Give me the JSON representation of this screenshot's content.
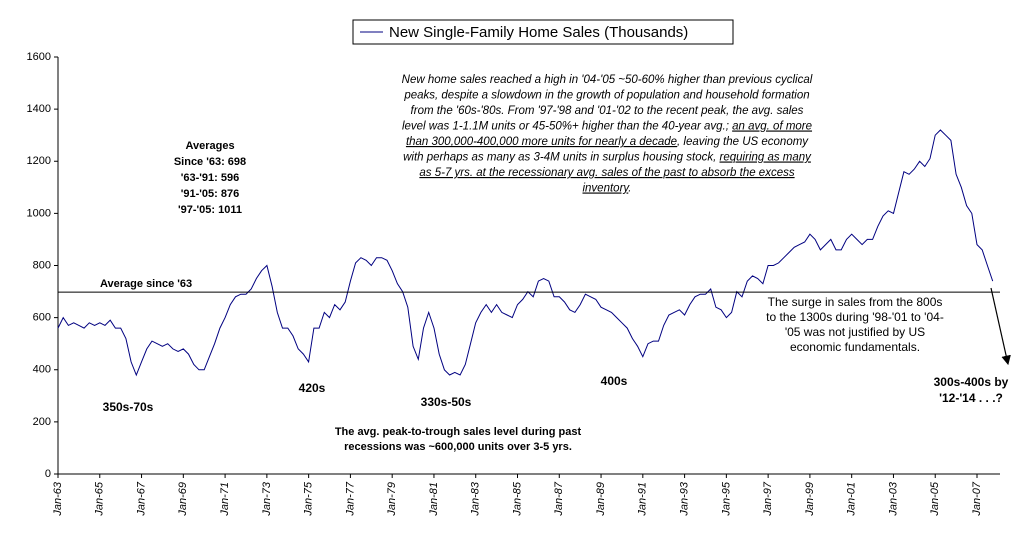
{
  "chart_data": {
    "type": "line",
    "legend": "top-center",
    "categories": [
      "Jan-63",
      null,
      null,
      null,
      null,
      null,
      null,
      null,
      "Jan-65",
      null,
      null,
      null,
      null,
      null,
      null,
      null,
      "Jan-67",
      null,
      null,
      null,
      null,
      null,
      null,
      null,
      "Jan-69",
      null,
      null,
      null,
      null,
      null,
      null,
      null,
      "Jan-71",
      null,
      null,
      null,
      null,
      null,
      null,
      null,
      "Jan-73",
      null,
      null,
      null,
      null,
      null,
      null,
      null,
      "Jan-75",
      null,
      null,
      null,
      null,
      null,
      null,
      null,
      "Jan-77",
      null,
      null,
      null,
      null,
      null,
      null,
      null,
      "Jan-79",
      null,
      null,
      null,
      null,
      null,
      null,
      null,
      "Jan-81",
      null,
      null,
      null,
      null,
      null,
      null,
      null,
      "Jan-83",
      null,
      null,
      null,
      null,
      null,
      null,
      null,
      "Jan-85",
      null,
      null,
      null,
      null,
      null,
      null,
      null,
      "Jan-87",
      null,
      null,
      null,
      null,
      null,
      null,
      null,
      "Jan-89",
      null,
      null,
      null,
      null,
      null,
      null,
      null,
      "Jan-91",
      null,
      null,
      null,
      null,
      null,
      null,
      null,
      "Jan-93",
      null,
      null,
      null,
      null,
      null,
      null,
      null,
      "Jan-95",
      null,
      null,
      null,
      null,
      null,
      null,
      null,
      "Jan-97",
      null,
      null,
      null,
      null,
      null,
      null,
      null,
      "Jan-99",
      null,
      null,
      null,
      null,
      null,
      null,
      null,
      "Jan-01",
      null,
      null,
      null,
      null,
      null,
      null,
      null,
      "Jan-03",
      null,
      null,
      null,
      null,
      null,
      null,
      null,
      "Jan-05",
      null,
      null,
      null,
      null,
      null,
      null,
      null,
      "Jan-07",
      null,
      null,
      null
    ],
    "series": [
      {
        "name": "New Single-Family Home Sales (Thousands)",
        "color": "#000080",
        "values": [
          560,
          600,
          570,
          580,
          570,
          560,
          580,
          570,
          580,
          570,
          590,
          560,
          560,
          520,
          430,
          380,
          430,
          480,
          510,
          500,
          490,
          500,
          480,
          470,
          480,
          460,
          420,
          400,
          400,
          450,
          500,
          560,
          600,
          650,
          680,
          690,
          690,
          710,
          750,
          780,
          800,
          720,
          620,
          560,
          560,
          530,
          480,
          460,
          430,
          560,
          560,
          620,
          600,
          650,
          630,
          660,
          740,
          810,
          830,
          820,
          800,
          830,
          830,
          820,
          780,
          730,
          700,
          640,
          490,
          440,
          560,
          620,
          560,
          460,
          400,
          380,
          390,
          380,
          420,
          500,
          580,
          620,
          650,
          620,
          650,
          620,
          610,
          600,
          650,
          670,
          700,
          680,
          740,
          750,
          740,
          680,
          680,
          660,
          630,
          620,
          650,
          690,
          680,
          670,
          640,
          630,
          620,
          600,
          580,
          560,
          520,
          490,
          450,
          500,
          510,
          510,
          570,
          610,
          620,
          630,
          610,
          650,
          680,
          690,
          690,
          710,
          640,
          630,
          600,
          620,
          700,
          680,
          740,
          760,
          750,
          730,
          800,
          800,
          810,
          830,
          850,
          870,
          880,
          890,
          920,
          900,
          860,
          880,
          900,
          860,
          860,
          900,
          920,
          900,
          880,
          900,
          900,
          950,
          990,
          1010,
          1000,
          1080,
          1160,
          1150,
          1170,
          1200,
          1180,
          1210,
          1300,
          1320,
          1300,
          1280,
          1150,
          1100,
          1030,
          1000,
          880,
          860,
          800,
          740
        ]
      }
    ],
    "ylim": [
      0,
      1600
    ],
    "yticks": [
      0,
      200,
      400,
      600,
      800,
      1000,
      1200,
      1400,
      1600
    ],
    "grid": false,
    "reference_line": {
      "label": "Average since '63",
      "value": 698
    },
    "averages": [
      "Averages",
      "Since '63: 698",
      "'63-'91: 596",
      "'91-'05: 876",
      "'97-'05: 1011"
    ],
    "trough_labels": [
      "350s-70s",
      "420s",
      "330s-50s",
      "400s"
    ],
    "forecast": [
      "300s-400s by",
      "'12-'14 . . .?"
    ],
    "recession_note": [
      "The avg. peak-to-trough sales level during past",
      "recessions was ~600,000 units over 3-5 yrs."
    ],
    "surge_note": [
      "The surge in sales from the 800s",
      "to the 1300s during '98-'01 to '04-",
      "'05 was not justified by US",
      "economic fundamentals."
    ],
    "main_note": [
      [
        {
          "text": "New home sales reached a high in '04-'05 ~50-60% higher than previous cyclical",
          "underline": false
        }
      ],
      [
        {
          "text": "peaks, despite a slowdown in the growth of population and household formation",
          "underline": false
        }
      ],
      [
        {
          "text": "from the '60s-'80s. From '97-'98 and '01-'02 to the recent peak, the avg. sales",
          "underline": false
        }
      ],
      [
        {
          "text": "level was 1-1.1M units or 45-50%+ higher than the 40-year avg.; ",
          "underline": false
        },
        {
          "text": "an avg. of more",
          "underline": true
        }
      ],
      [
        {
          "text": "than 300,000-400,000 more units for nearly a decade",
          "underline": true
        },
        {
          "text": ", leaving the US economy",
          "underline": false
        }
      ],
      [
        {
          "text": "with perhaps as many as 3-4M units in surplus housing stock, ",
          "underline": false
        },
        {
          "text": "requiring as many",
          "underline": true
        }
      ],
      [
        {
          "text": "as 5-7 yrs. at the recessionary avg. sales of the past to absorb the excess",
          "underline": true
        }
      ],
      [
        {
          "text": "inventory",
          "underline": true
        },
        {
          "text": ".",
          "underline": false
        }
      ]
    ]
  }
}
